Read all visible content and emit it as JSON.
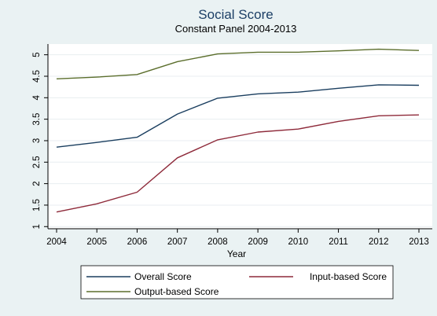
{
  "chart_data": {
    "type": "line",
    "title": "Social Score",
    "subtitle": "Constant Panel 2004-2013",
    "xlabel": "Year",
    "ylabel": "",
    "x": [
      2004,
      2005,
      2006,
      2007,
      2008,
      2009,
      2010,
      2011,
      2012,
      2013
    ],
    "xlim": [
      2004,
      2013
    ],
    "ylim": [
      0.95,
      5.25
    ],
    "yticks": [
      "1",
      "1.5",
      "2",
      "2.5",
      "3",
      "3.5",
      "4",
      "4.5",
      "5"
    ],
    "grid": true,
    "legend_position": "bottom",
    "series": [
      {
        "name": "Overall Score",
        "color": "#1a3e5f",
        "values": [
          2.85,
          2.96,
          3.08,
          3.62,
          3.99,
          4.09,
          4.13,
          4.22,
          4.3,
          4.29
        ]
      },
      {
        "name": "Input-based Score",
        "color": "#8e2a3a",
        "values": [
          1.34,
          1.53,
          1.8,
          2.6,
          3.02,
          3.2,
          3.27,
          3.45,
          3.58,
          3.6
        ]
      },
      {
        "name": "Output-based Score",
        "color": "#5b6e2c",
        "values": [
          4.44,
          4.48,
          4.54,
          4.84,
          5.02,
          5.06,
          5.06,
          5.09,
          5.13,
          5.1
        ]
      }
    ]
  }
}
